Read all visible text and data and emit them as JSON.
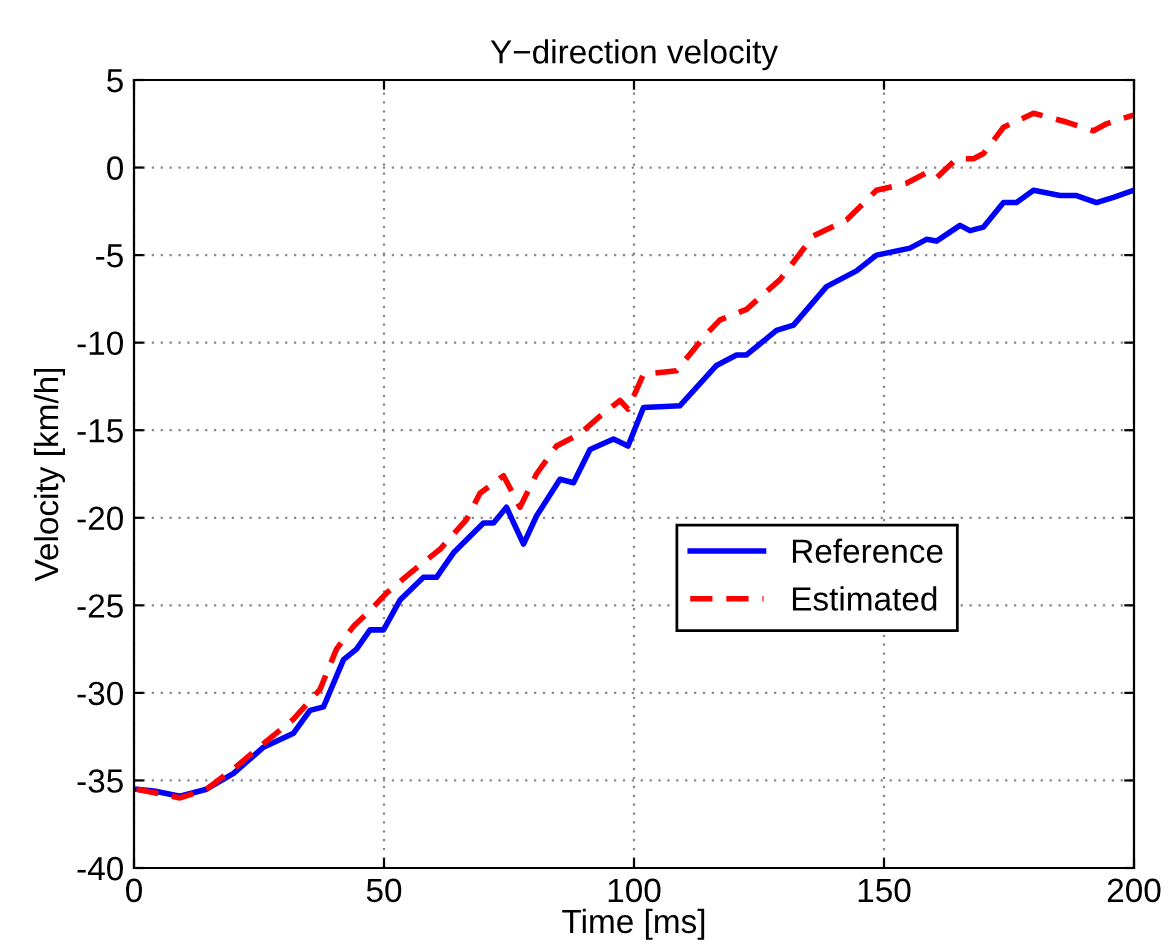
{
  "chart_data": {
    "type": "line",
    "title": "Y−direction velocity",
    "xlabel": "Time [ms]",
    "ylabel": "Velocity [km/h]",
    "xlim": [
      0,
      200
    ],
    "xticks": [
      0,
      50,
      100,
      150,
      200
    ],
    "ylim": [
      -40,
      5
    ],
    "yticks": [
      -40,
      -35,
      -30,
      -25,
      -20,
      -15,
      -10,
      -5,
      0,
      5
    ],
    "grid": true,
    "legend": "right",
    "marker": "none",
    "series": [
      {
        "name": "Reference",
        "color": "#0000ff",
        "line_style": "solid",
        "x": [
          0.5,
          4,
          9.2,
          14.5,
          19.9,
          25.9,
          31.9,
          35.2,
          37.9,
          41.9,
          44.5,
          47.2,
          49.9,
          53.2,
          57.9,
          60.5,
          63.9,
          69.9,
          71.9,
          74.5,
          77.9,
          80.5,
          85.2,
          87.9,
          91.2,
          95.9,
          98.8,
          101.9,
          109.2,
          116.5,
          120.5,
          122.5,
          128.5,
          131.9,
          138.5,
          144.5,
          148.5,
          155.2,
          158.5,
          160.5,
          165.2,
          167.2,
          169.9,
          173.9,
          176.5,
          179.9,
          185.2,
          188.5,
          192.5,
          195.9,
          199.9
        ],
        "values": [
          -35.5,
          -35.6,
          -35.9,
          -35.5,
          -34.6,
          -33.1,
          -32.3,
          -31.0,
          -30.8,
          -28.1,
          -27.5,
          -26.4,
          -26.4,
          -24.7,
          -23.4,
          -23.4,
          -22.0,
          -20.3,
          -20.3,
          -19.4,
          -21.5,
          -19.9,
          -17.8,
          -18.0,
          -16.1,
          -15.5,
          -15.9,
          -13.7,
          -13.6,
          -11.3,
          -10.7,
          -10.7,
          -9.3,
          -9.0,
          -6.8,
          -5.9,
          -5.0,
          -4.6,
          -4.1,
          -4.2,
          -3.3,
          -3.6,
          -3.4,
          -2.0,
          -2.0,
          -1.3,
          -1.6,
          -1.6,
          -2.0,
          -1.7,
          -1.3
        ]
      },
      {
        "name": "Estimated",
        "color": "#ff0000",
        "line_style": "dashed",
        "x": [
          0.5,
          9.2,
          14.5,
          20.5,
          25.9,
          31.9,
          37.2,
          40.5,
          43.9,
          47.2,
          50.5,
          55.9,
          61.2,
          66.5,
          69.2,
          73.9,
          77.2,
          80.5,
          84.5,
          89.2,
          93.2,
          97.2,
          98.8,
          101.9,
          108.5,
          114.5,
          117.2,
          122.5,
          129.2,
          135.9,
          142.5,
          148.5,
          154.5,
          158.5,
          160.5,
          164.5,
          167.9,
          169.9,
          173.9,
          179.9,
          186.5,
          191.9,
          194.5,
          199.9
        ],
        "values": [
          -35.5,
          -36.0,
          -35.5,
          -34.2,
          -32.9,
          -31.5,
          -29.8,
          -27.5,
          -26.2,
          -25.3,
          -24.3,
          -23.0,
          -21.8,
          -20.1,
          -18.6,
          -17.6,
          -19.4,
          -17.5,
          -15.9,
          -15.2,
          -14.2,
          -13.3,
          -13.8,
          -11.8,
          -11.6,
          -9.5,
          -8.7,
          -8.1,
          -6.4,
          -3.9,
          -3.0,
          -1.3,
          -0.9,
          -0.3,
          -0.6,
          0.5,
          0.5,
          0.8,
          2.3,
          3.1,
          2.6,
          2.1,
          2.5,
          3.0
        ]
      }
    ]
  }
}
